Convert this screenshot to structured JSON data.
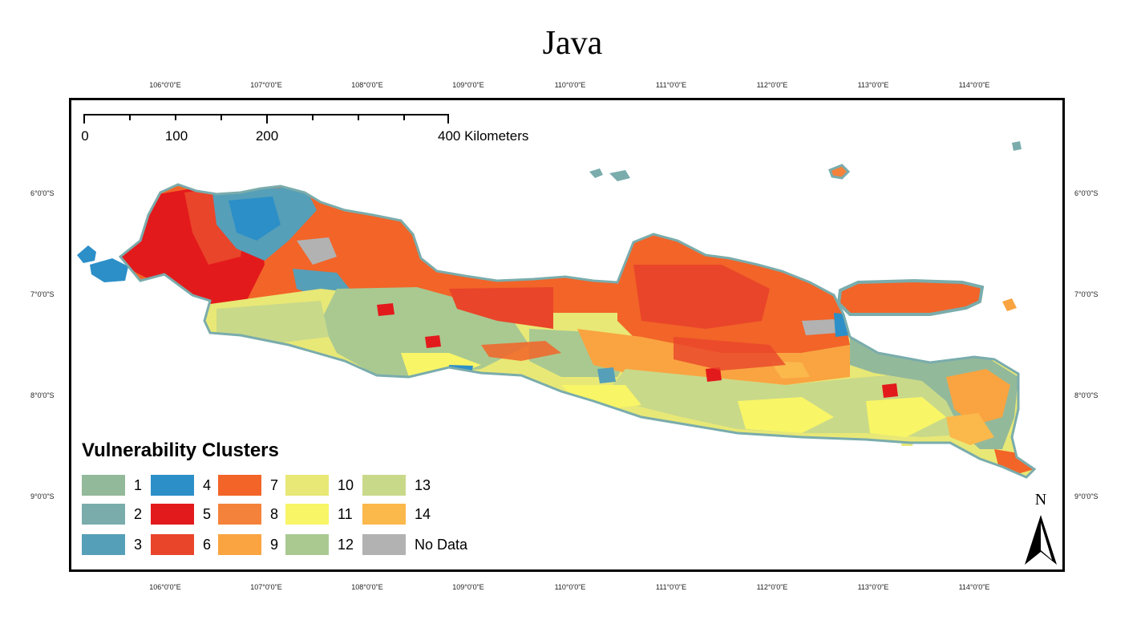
{
  "title": "Java",
  "scale": {
    "labels": [
      "0",
      "100",
      "200",
      "400 Kilometers"
    ]
  },
  "longitude_labels": [
    "106°0'0\"E",
    "107°0'0\"E",
    "108°0'0\"E",
    "109°0'0\"E",
    "110°0'0\"E",
    "111°0'0\"E",
    "112°0'0\"E",
    "113°0'0\"E",
    "114°0'0\"E"
  ],
  "latitude_labels": [
    "6°0'0\"S",
    "7°0'0\"S",
    "8°0'0\"S",
    "9°0'0\"S"
  ],
  "legend": {
    "title": "Vulnerability Clusters",
    "items": [
      {
        "label": "1",
        "color": "#93b99b"
      },
      {
        "label": "2",
        "color": "#7aacac"
      },
      {
        "label": "3",
        "color": "#569fb8"
      },
      {
        "label": "4",
        "color": "#2c8fc8"
      },
      {
        "label": "5",
        "color": "#e31a1c"
      },
      {
        "label": "6",
        "color": "#e9452a"
      },
      {
        "label": "7",
        "color": "#f26428"
      },
      {
        "label": "8",
        "color": "#f5823a"
      },
      {
        "label": "9",
        "color": "#f9a441"
      },
      {
        "label": "10",
        "color": "#e8e876"
      },
      {
        "label": "11",
        "color": "#f8f566"
      },
      {
        "label": "12",
        "color": "#a9c991"
      },
      {
        "label": "13",
        "color": "#c9d98a"
      },
      {
        "label": "14",
        "color": "#fbb84b"
      },
      {
        "label": "No Data",
        "color": "#b2b2b2"
      }
    ]
  },
  "north_arrow": {
    "label": "N"
  }
}
